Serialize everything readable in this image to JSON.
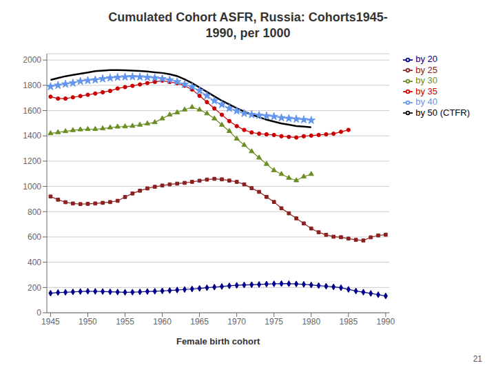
{
  "chart_data": {
    "type": "line",
    "title": "Cumulated Cohort ASFR, Russia: Cohorts1945-\n1990, per 1000",
    "xlabel": "Female birth cohort",
    "xlim": [
      1944.5,
      1990.5
    ],
    "xticks": [
      1945,
      1950,
      1955,
      1960,
      1965,
      1970,
      1975,
      1980,
      1985,
      1990
    ],
    "ylim": [
      0,
      2050
    ],
    "yticks": [
      0,
      200,
      400,
      600,
      800,
      1000,
      1200,
      1400,
      1600,
      1800,
      2000
    ],
    "grid": true,
    "legend": "right",
    "annotations": [
      "21"
    ],
    "series": [
      {
        "name": "by 20",
        "color": "#00008B",
        "marker": "diamond",
        "x": [
          1945,
          1946,
          1947,
          1948,
          1949,
          1950,
          1951,
          1952,
          1953,
          1954,
          1955,
          1956,
          1957,
          1958,
          1959,
          1960,
          1961,
          1962,
          1963,
          1964,
          1965,
          1966,
          1967,
          1968,
          1969,
          1970,
          1971,
          1972,
          1973,
          1974,
          1975,
          1976,
          1977,
          1978,
          1979,
          1980,
          1981,
          1982,
          1983,
          1984,
          1985,
          1986,
          1987,
          1988,
          1989,
          1990
        ],
        "values": [
          155,
          160,
          162,
          165,
          168,
          170,
          169,
          168,
          166,
          164,
          162,
          163,
          165,
          168,
          170,
          173,
          176,
          180,
          184,
          188,
          193,
          198,
          203,
          208,
          213,
          217,
          220,
          222,
          224,
          227,
          229,
          231,
          230,
          228,
          225,
          220,
          215,
          210,
          205,
          198,
          185,
          172,
          163,
          153,
          143,
          133
        ]
      },
      {
        "name": "by 25",
        "color": "#8B2020",
        "marker": "square",
        "x": [
          1945,
          1946,
          1947,
          1948,
          1949,
          1950,
          1951,
          1952,
          1953,
          1954,
          1955,
          1956,
          1957,
          1958,
          1959,
          1960,
          1961,
          1962,
          1963,
          1964,
          1965,
          1966,
          1967,
          1968,
          1969,
          1970,
          1971,
          1972,
          1973,
          1974,
          1975,
          1976,
          1977,
          1978,
          1979,
          1980,
          1981,
          1982,
          1983,
          1984,
          1985,
          1986,
          1987,
          1988,
          1989,
          1990
        ],
        "values": [
          920,
          895,
          875,
          865,
          860,
          862,
          865,
          870,
          876,
          886,
          916,
          944,
          966,
          984,
          997,
          1007,
          1016,
          1022,
          1028,
          1036,
          1045,
          1054,
          1060,
          1056,
          1046,
          1036,
          1016,
          986,
          957,
          917,
          877,
          827,
          787,
          747,
          707,
          667,
          637,
          617,
          602,
          598,
          587,
          577,
          572,
          597,
          612,
          618
        ]
      },
      {
        "name": "by 30",
        "color": "#6B8E23",
        "marker": "triangle",
        "x": [
          1945,
          1946,
          1947,
          1948,
          1949,
          1950,
          1951,
          1952,
          1953,
          1954,
          1955,
          1956,
          1957,
          1958,
          1959,
          1960,
          1961,
          1962,
          1963,
          1964,
          1965,
          1966,
          1967,
          1968,
          1969,
          1970,
          1971,
          1972,
          1973,
          1974,
          1975,
          1976,
          1977,
          1978,
          1979,
          1980
        ],
        "values": [
          1420,
          1428,
          1436,
          1444,
          1450,
          1453,
          1453,
          1458,
          1466,
          1472,
          1474,
          1478,
          1487,
          1497,
          1507,
          1537,
          1567,
          1585,
          1607,
          1627,
          1607,
          1577,
          1537,
          1487,
          1437,
          1377,
          1327,
          1277,
          1227,
          1177,
          1127,
          1097,
          1067,
          1047,
          1077,
          1097
        ]
      },
      {
        "name": "by 35",
        "color": "#cc0000",
        "marker": "circle",
        "x": [
          1945,
          1946,
          1947,
          1948,
          1949,
          1950,
          1951,
          1952,
          1953,
          1954,
          1955,
          1956,
          1957,
          1958,
          1959,
          1960,
          1961,
          1962,
          1963,
          1964,
          1965,
          1966,
          1967,
          1968,
          1969,
          1970,
          1971,
          1972,
          1973,
          1974,
          1975,
          1976,
          1977,
          1978,
          1979,
          1980,
          1981,
          1982,
          1983,
          1984,
          1985
        ],
        "values": [
          1710,
          1695,
          1695,
          1705,
          1715,
          1725,
          1735,
          1745,
          1756,
          1775,
          1786,
          1796,
          1807,
          1818,
          1827,
          1837,
          1827,
          1817,
          1797,
          1767,
          1717,
          1667,
          1617,
          1567,
          1517,
          1477,
          1447,
          1427,
          1417,
          1412,
          1407,
          1397,
          1392,
          1387,
          1397,
          1402,
          1407,
          1412,
          1417,
          1432,
          1447
        ]
      },
      {
        "name": "by 40",
        "color": "#6495ED",
        "marker": "star",
        "x": [
          1945,
          1946,
          1947,
          1948,
          1949,
          1950,
          1951,
          1952,
          1953,
          1954,
          1955,
          1956,
          1957,
          1958,
          1959,
          1960,
          1961,
          1962,
          1963,
          1964,
          1965,
          1966,
          1967,
          1968,
          1969,
          1970,
          1971,
          1972,
          1973,
          1974,
          1975,
          1976,
          1977,
          1978,
          1979,
          1980
        ],
        "values": [
          1790,
          1800,
          1810,
          1818,
          1832,
          1838,
          1843,
          1852,
          1858,
          1863,
          1866,
          1868,
          1866,
          1863,
          1858,
          1852,
          1842,
          1828,
          1808,
          1788,
          1758,
          1718,
          1678,
          1648,
          1618,
          1598,
          1578,
          1568,
          1563,
          1558,
          1553,
          1543,
          1538,
          1533,
          1528,
          1523
        ]
      },
      {
        "name": "by 50 (CTFR)",
        "color": "#000000",
        "marker": "none",
        "x": [
          1945,
          1946,
          1947,
          1948,
          1949,
          1950,
          1951,
          1952,
          1953,
          1954,
          1955,
          1956,
          1957,
          1958,
          1959,
          1960,
          1961,
          1962,
          1963,
          1964,
          1965,
          1966,
          1967,
          1968,
          1969,
          1970,
          1971,
          1972,
          1973,
          1974,
          1975,
          1976,
          1977,
          1978,
          1979,
          1980
        ],
        "values": [
          1843,
          1858,
          1872,
          1882,
          1892,
          1902,
          1912,
          1917,
          1921,
          1921,
          1919,
          1917,
          1914,
          1909,
          1903,
          1898,
          1888,
          1873,
          1848,
          1818,
          1783,
          1748,
          1713,
          1678,
          1648,
          1618,
          1593,
          1568,
          1548,
          1528,
          1513,
          1498,
          1488,
          1478,
          1473,
          1468
        ]
      }
    ]
  }
}
